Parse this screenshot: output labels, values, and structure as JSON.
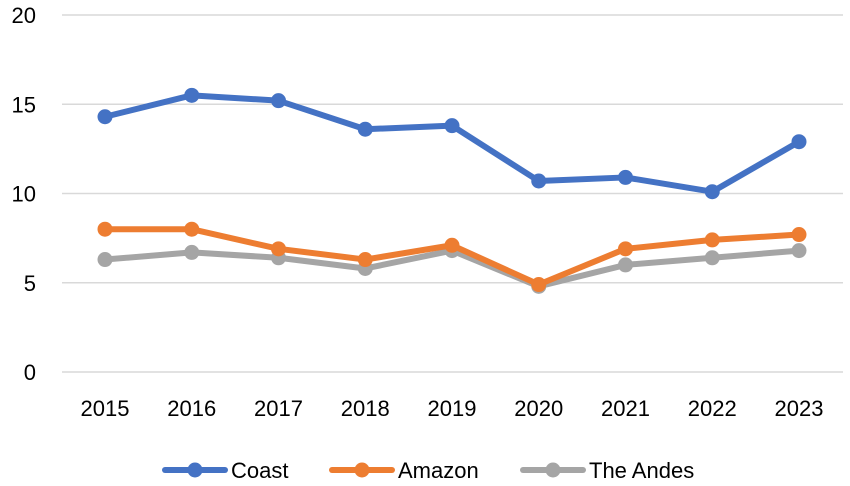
{
  "chart_data": {
    "type": "line",
    "title": "",
    "xlabel": "",
    "ylabel": "",
    "categories": [
      "2015",
      "2016",
      "2017",
      "2018",
      "2019",
      "2020",
      "2021",
      "2022",
      "2023"
    ],
    "ylim": [
      0,
      20
    ],
    "yticks": [
      0,
      5,
      10,
      15,
      20
    ],
    "ytick_labels": [
      "0",
      "5",
      "10",
      "15",
      "20"
    ],
    "grid": true,
    "legend_position": "bottom",
    "series": [
      {
        "name": "Coast",
        "color": "#4472C4",
        "values": [
          14.3,
          15.5,
          15.2,
          13.6,
          13.8,
          10.7,
          10.9,
          10.1,
          12.9
        ]
      },
      {
        "name": "Amazon",
        "color": "#ED7D31",
        "values": [
          8.0,
          8.0,
          6.9,
          6.3,
          7.1,
          4.9,
          6.9,
          7.4,
          7.7
        ]
      },
      {
        "name": "The Andes",
        "color": "#A5A5A5",
        "values": [
          6.3,
          6.7,
          6.4,
          5.8,
          6.8,
          4.8,
          6.0,
          6.4,
          6.8
        ]
      }
    ],
    "gridline_color": "#D9D9D9"
  }
}
